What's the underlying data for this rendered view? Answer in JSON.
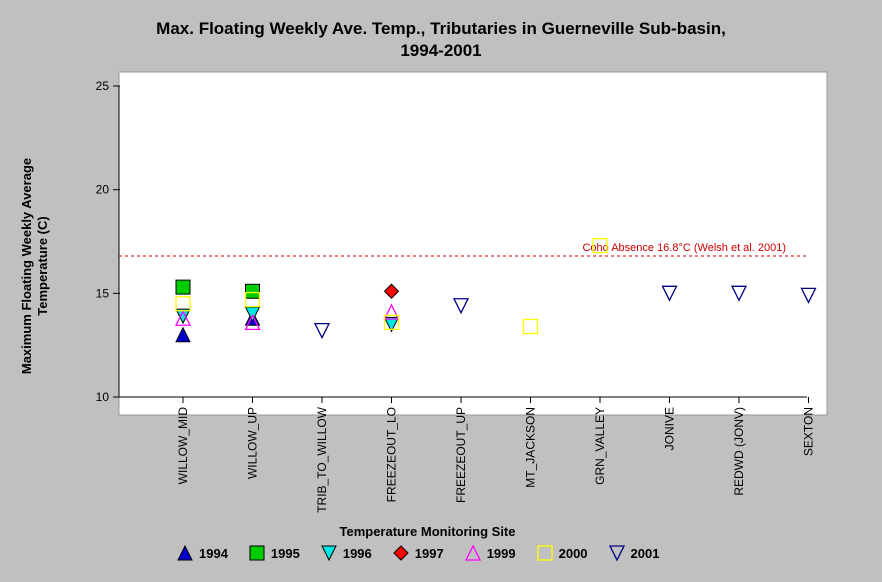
{
  "chart_data": {
    "type": "scatter",
    "title_line1": "Max. Floating Weekly Ave. Temp., Tributaries in Guerneville Sub-basin,",
    "title_line2": "1994-2001",
    "ylabel_line1": "Maximum Floating Weekly Average",
    "ylabel_line2": "Temperature (C)",
    "xlabel": "Temperature Monitoring Site",
    "ylim": [
      10,
      25
    ],
    "yticks": [
      10,
      15,
      20,
      25
    ],
    "categories": [
      "WILLOW_MID",
      "WILLOW_UP",
      "TRIB_TO_WILLOW",
      "FREEZEOUT_LO",
      "FREEZEOUT_UP",
      "MT_JACKSON",
      "GRN_VALLEY",
      "JONIVE",
      "REDWD (JONV)",
      "SEXTON"
    ],
    "reference_line": {
      "value": 16.8,
      "label": "Coho Absence 16.8°C (Welsh et al. 2001)",
      "color": "#cc0000"
    },
    "series": [
      {
        "name": "1994",
        "marker": "triangle-up",
        "color": "#0000cc",
        "fill": true,
        "points": [
          {
            "x": "WILLOW_MID",
            "y": 13.0
          },
          {
            "x": "WILLOW_UP",
            "y": 13.8
          }
        ]
      },
      {
        "name": "1995",
        "marker": "square",
        "color": "#00cc00",
        "fill": true,
        "points": [
          {
            "x": "WILLOW_MID",
            "y": 15.3
          },
          {
            "x": "WILLOW_UP",
            "y": 15.1
          }
        ]
      },
      {
        "name": "1996",
        "marker": "triangle-down",
        "color": "#00e5e5",
        "fill": true,
        "points": [
          {
            "x": "WILLOW_MID",
            "y": 13.9
          },
          {
            "x": "WILLOW_UP",
            "y": 14.0
          },
          {
            "x": "FREEZEOUT_LO",
            "y": 13.5
          }
        ]
      },
      {
        "name": "1997",
        "marker": "diamond",
        "color": "#ff0000",
        "fill": true,
        "points": [
          {
            "x": "FREEZEOUT_LO",
            "y": 15.1
          }
        ]
      },
      {
        "name": "1999",
        "marker": "triangle-up",
        "color": "#ff00ff",
        "fill": false,
        "points": [
          {
            "x": "WILLOW_MID",
            "y": 13.8
          },
          {
            "x": "WILLOW_UP",
            "y": 13.6
          },
          {
            "x": "FREEZEOUT_LO",
            "y": 14.1
          }
        ]
      },
      {
        "name": "2000",
        "marker": "square",
        "color": "#ffff00",
        "fill": false,
        "points": [
          {
            "x": "WILLOW_MID",
            "y": 14.5
          },
          {
            "x": "WILLOW_UP",
            "y": 14.7
          },
          {
            "x": "FREEZEOUT_LO",
            "y": 13.6
          },
          {
            "x": "MT_JACKSON",
            "y": 13.4
          },
          {
            "x": "GRN_VALLEY",
            "y": 17.3
          }
        ]
      },
      {
        "name": "2001",
        "marker": "triangle-down",
        "color": "#000080",
        "fill": false,
        "points": [
          {
            "x": "TRIB_TO_WILLOW",
            "y": 13.2
          },
          {
            "x": "FREEZEOUT_UP",
            "y": 14.4
          },
          {
            "x": "JONIVE",
            "y": 15.0
          },
          {
            "x": "REDWD (JONV)",
            "y": 15.0
          },
          {
            "x": "SEXTON",
            "y": 14.9
          }
        ]
      }
    ],
    "grid": false,
    "legend_position": "bottom"
  }
}
